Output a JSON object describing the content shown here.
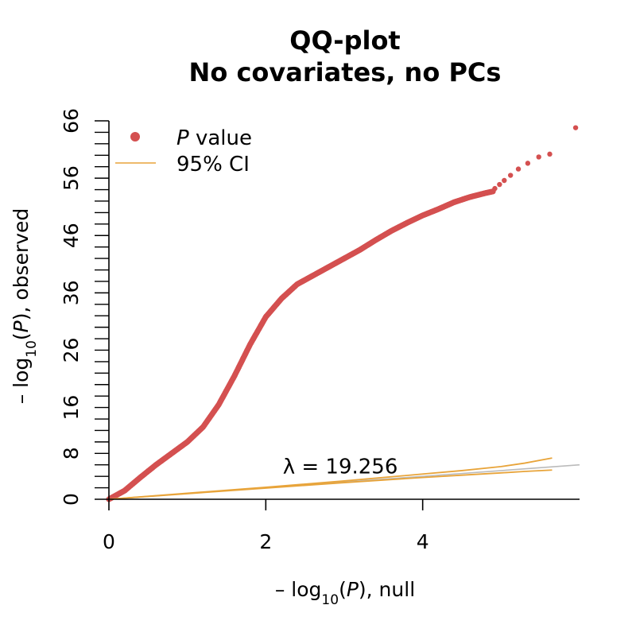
{
  "chart_data": {
    "type": "scatter",
    "title_lines": [
      "QQ-plot",
      "No covariates, no PCs"
    ],
    "xlabel": {
      "prefix": "– log",
      "sub": "10",
      "open": "(",
      "var": "P",
      "close": "), null"
    },
    "ylabel": {
      "prefix": "– log",
      "sub": "10",
      "open": "(",
      "var": "P",
      "close": "), observed"
    },
    "xlim": [
      0,
      6
    ],
    "ylim": [
      0,
      66
    ],
    "x_ticks": [
      0,
      2,
      4
    ],
    "y_ticks": [
      0,
      8,
      16,
      26,
      36,
      46,
      56,
      66
    ],
    "y_minor_step": 2,
    "grid": false,
    "legend": {
      "placement": "top-left",
      "items": [
        {
          "label_var": "P",
          "label_rest": " value",
          "kind": "point",
          "color": "#d45050"
        },
        {
          "label": "95% CI",
          "kind": "line",
          "color": "#e8a43a"
        }
      ]
    },
    "annotation": "λ = 19.256",
    "annotation_at": {
      "x": 2.95,
      "y": 4.5
    },
    "colors": {
      "points": "#d45050",
      "ci": "#e8a43a",
      "reference": "#bbbbbb",
      "axis": "#000000"
    },
    "reference_line": {
      "from": [
        0,
        0
      ],
      "to": [
        6,
        6
      ]
    },
    "ci_upper": [
      [
        0,
        0
      ],
      [
        1,
        1.05
      ],
      [
        2,
        2.1
      ],
      [
        3,
        3.2
      ],
      [
        4,
        4.4
      ],
      [
        4.5,
        5.0
      ],
      [
        5,
        5.7
      ],
      [
        5.3,
        6.3
      ],
      [
        5.65,
        7.2
      ]
    ],
    "ci_lower": [
      [
        0,
        0
      ],
      [
        1,
        0.98
      ],
      [
        2,
        1.95
      ],
      [
        3,
        2.9
      ],
      [
        4,
        3.8
      ],
      [
        4.5,
        4.2
      ],
      [
        5,
        4.6
      ],
      [
        5.3,
        4.85
      ],
      [
        5.65,
        5.1
      ]
    ],
    "observed_curve": [
      [
        0,
        0
      ],
      [
        0.2,
        1.5
      ],
      [
        0.4,
        3.8
      ],
      [
        0.6,
        6.0
      ],
      [
        0.8,
        8.0
      ],
      [
        1.0,
        10.0
      ],
      [
        1.2,
        12.6
      ],
      [
        1.4,
        16.5
      ],
      [
        1.6,
        21.5
      ],
      [
        1.8,
        27.0
      ],
      [
        2.0,
        31.8
      ],
      [
        2.2,
        35.0
      ],
      [
        2.4,
        37.5
      ],
      [
        2.6,
        39.0
      ],
      [
        2.8,
        40.5
      ],
      [
        3.0,
        42.0
      ],
      [
        3.2,
        43.5
      ],
      [
        3.4,
        45.2
      ],
      [
        3.6,
        46.8
      ],
      [
        3.8,
        48.2
      ],
      [
        4.0,
        49.5
      ],
      [
        4.2,
        50.6
      ],
      [
        4.4,
        51.8
      ],
      [
        4.6,
        52.7
      ],
      [
        4.8,
        53.4
      ],
      [
        4.9,
        53.7
      ]
    ],
    "observed_tail": [
      [
        4.92,
        54.2
      ],
      [
        4.98,
        54.9
      ],
      [
        5.04,
        55.6
      ],
      [
        5.12,
        56.5
      ],
      [
        5.22,
        57.6
      ],
      [
        5.34,
        58.6
      ],
      [
        5.48,
        59.7
      ],
      [
        5.62,
        60.2
      ],
      [
        5.95,
        64.8
      ]
    ]
  }
}
